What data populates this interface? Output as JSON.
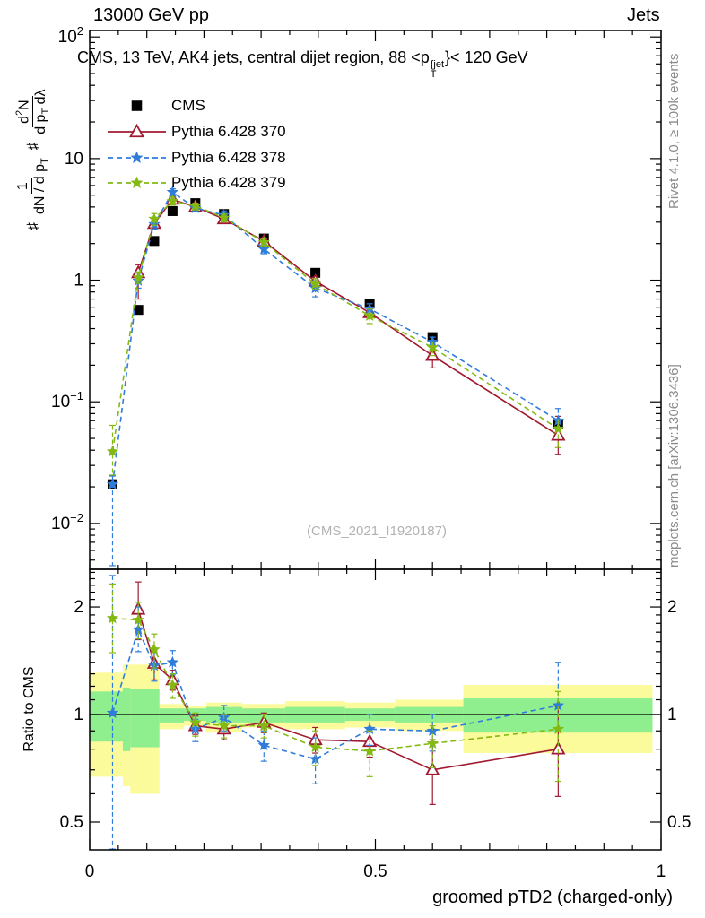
{
  "header": {
    "left": "13000 GeV pp",
    "right": "Jets"
  },
  "title": {
    "prefix": "CMS, 13 TeV, AK4 jets, central dijet region, 88 <p",
    "sup": "{jet",
    "sub": "T",
    "suffix": "}< 120 GeV"
  },
  "right_margin": {
    "top": "Rivet 4.1.0, ≥ 100k events",
    "bottom": "mcplots.cern.ch [arXiv:1306.3436]"
  },
  "watermark": "(CMS_2021_I1920187)",
  "ylabel": {
    "hash1": "♯",
    "frac1_num": "1",
    "frac1_den": "dN / d p",
    "frac1_den_sub": "T",
    "hash2": "♯",
    "frac2_num_a": "d",
    "frac2_num_sup": "2",
    "frac2_num_b": "N",
    "frac2_den_a": "d p",
    "frac2_den_sub": "T",
    "frac2_den_b": " dλ"
  },
  "ratio_label": "Ratio to CMS",
  "xlabel": "groomed pTD2 (charged-only)",
  "legend": [
    {
      "label": "CMS",
      "marker": "square",
      "color": "#000000",
      "line": "none"
    },
    {
      "label": "Pythia 6.428 370",
      "marker": "triangle",
      "color": "#a11931",
      "line": "solid"
    },
    {
      "label": "Pythia 6.428 378",
      "marker": "star",
      "color": "#2f7cdb",
      "line": "dash"
    },
    {
      "label": "Pythia 6.428 379",
      "marker": "star",
      "color": "#84b914",
      "line": "dash"
    }
  ],
  "colors": {
    "cms": "#000000",
    "pythia370": "#a11931",
    "pythia378": "#2f7cdb",
    "pythia379": "#84b914",
    "band_yellow": "#fbfb9b",
    "band_green": "#8fee8d",
    "frame": "#000000",
    "gray_text": "#8c8c8c",
    "watermark": "#b2b2b2"
  },
  "chart_data": {
    "type": "line",
    "title": "CMS, 13 TeV, AK4 jets, central dijet region, 88 < pT{jet} < 120 GeV",
    "xlabel": "groomed pTD2 (charged-only)",
    "ylabel": "# 1/(dN/dp_T) # d^2N/(dp_T dlambda)",
    "ratio_ylabel": "Ratio to CMS",
    "x_range": [
      0,
      1
    ],
    "main_y_range": [
      0.0042,
      113
    ],
    "main_y_scale": "log",
    "ratio_y_range": [
      0.418,
      2.55
    ],
    "ratio_y_scale": "log",
    "grid": false,
    "legend_position": "top-left",
    "x": [
      0.04,
      0.085,
      0.113,
      0.145,
      0.185,
      0.235,
      0.305,
      0.395,
      0.49,
      0.6,
      0.82
    ],
    "series": [
      {
        "name": "CMS",
        "marker": "square",
        "color": "#000000",
        "line": "none",
        "main": [
          0.021,
          0.57,
          2.1,
          3.7,
          4.3,
          3.5,
          2.2,
          1.15,
          0.64,
          0.34,
          0.066
        ],
        "main_err": null,
        "ratio": null,
        "ratio_err": null
      },
      {
        "name": "Pythia 6.428 370",
        "marker": "triangle",
        "color": "#a11931",
        "line": "solid",
        "main": [
          null,
          1.15,
          2.92,
          4.62,
          4.0,
          3.19,
          2.09,
          0.98,
          0.54,
          0.24,
          0.053
        ],
        "main_err": [
          null,
          [
            0.7,
            1.34
          ],
          [
            2.63,
            3.21
          ],
          [
            4.33,
            4.92
          ],
          [
            3.78,
            4.26
          ],
          [
            2.98,
            3.43
          ],
          [
            1.96,
            2.22
          ],
          [
            0.9,
            1.06
          ],
          [
            0.49,
            0.59
          ],
          [
            0.19,
            0.29
          ],
          [
            0.037,
            0.076
          ]
        ],
        "ratio": [
          null,
          1.97,
          1.39,
          1.25,
          0.93,
          0.91,
          0.95,
          0.85,
          0.84,
          0.7,
          0.8
        ],
        "ratio_err": [
          null,
          [
            1.62,
            2.35
          ],
          [
            1.25,
            1.53
          ],
          [
            1.17,
            1.33
          ],
          [
            0.88,
            0.99
          ],
          [
            0.85,
            0.98
          ],
          [
            0.89,
            1.01
          ],
          [
            0.78,
            0.92
          ],
          [
            0.76,
            0.92
          ],
          [
            0.56,
            0.85
          ],
          [
            0.59,
            1.05
          ]
        ]
      },
      {
        "name": "Pythia 6.428 378",
        "marker": "star",
        "color": "#2f7cdb",
        "line": "dash",
        "main": [
          0.021,
          0.99,
          2.88,
          5.3,
          3.91,
          3.43,
          1.8,
          0.86,
          0.58,
          0.31,
          0.07
        ],
        "main_err": [
          [
            0.0045,
            0.0245
          ],
          [
            0.86,
            1.14
          ],
          [
            2.63,
            3.15
          ],
          [
            4.95,
            5.65
          ],
          [
            3.66,
            4.17
          ],
          [
            3.15,
            3.71
          ],
          [
            1.65,
            1.98
          ],
          [
            0.73,
            0.99
          ],
          [
            0.53,
            0.64
          ],
          [
            0.27,
            0.34
          ],
          [
            0.059,
            0.088
          ]
        ],
        "ratio": [
          1.01,
          1.73,
          1.37,
          1.4,
          0.91,
          0.98,
          0.82,
          0.75,
          0.91,
          0.9,
          1.06
        ],
        "ratio_err": [
          [
            0.42,
            2.45
          ],
          [
            1.5,
            2.0
          ],
          [
            1.24,
            1.5
          ],
          [
            1.29,
            1.51
          ],
          [
            0.84,
            0.97
          ],
          [
            0.9,
            1.06
          ],
          [
            0.74,
            0.9
          ],
          [
            0.64,
            0.86
          ],
          [
            0.82,
            1.0
          ],
          [
            0.79,
            1.0
          ],
          [
            0.9,
            1.4
          ]
        ]
      },
      {
        "name": "Pythia 6.428 379",
        "marker": "star",
        "color": "#84b914",
        "line": "dash",
        "main": [
          0.039,
          1.05,
          3.19,
          4.48,
          4.09,
          3.26,
          2.05,
          0.93,
          0.51,
          0.28,
          0.06
        ],
        "main_err": [
          [
            0.025,
            0.064
          ],
          [
            0.94,
            1.17
          ],
          [
            2.83,
            3.53
          ],
          [
            4.14,
            4.81
          ],
          [
            3.78,
            4.3
          ],
          [
            3.01,
            3.5
          ],
          [
            1.89,
            2.2
          ],
          [
            0.84,
            1.03
          ],
          [
            0.44,
            0.58
          ],
          [
            0.24,
            0.31
          ],
          [
            0.042,
            0.071
          ]
        ],
        "ratio": [
          1.86,
          1.84,
          1.52,
          1.21,
          0.95,
          0.93,
          0.93,
          0.81,
          0.79,
          0.83,
          0.91
        ],
        "ratio_err": [
          [
            1.49,
            2.32
          ],
          [
            1.63,
            2.06
          ],
          [
            1.35,
            1.68
          ],
          [
            1.11,
            1.3
          ],
          [
            0.87,
            1.01
          ],
          [
            0.86,
            1.0
          ],
          [
            0.86,
            1.0
          ],
          [
            0.72,
            0.9
          ],
          [
            0.67,
            0.9
          ],
          [
            0.71,
            0.93
          ],
          [
            0.65,
            1.16
          ]
        ]
      }
    ],
    "ratio_reference_line": 1,
    "ratio_bands": [
      {
        "x0": 0.0,
        "x1": 0.058,
        "yellow": [
          0.67,
          1.31
        ],
        "green": [
          0.84,
          1.16
        ]
      },
      {
        "x0": 0.058,
        "x1": 0.071,
        "yellow": [
          0.63,
          1.38
        ],
        "green": [
          0.79,
          1.19
        ]
      },
      {
        "x0": 0.071,
        "x1": 0.122,
        "yellow": [
          0.6,
          1.38
        ],
        "green": [
          0.81,
          1.18
        ]
      },
      {
        "x0": 0.122,
        "x1": 0.165,
        "yellow": [
          0.91,
          1.07
        ],
        "green": [
          0.95,
          1.04
        ]
      },
      {
        "x0": 0.165,
        "x1": 0.204,
        "yellow": [
          0.93,
          1.06
        ],
        "green": [
          0.96,
          1.04
        ]
      },
      {
        "x0": 0.204,
        "x1": 0.267,
        "yellow": [
          0.89,
          1.08
        ],
        "green": [
          0.95,
          1.05
        ]
      },
      {
        "x0": 0.267,
        "x1": 0.342,
        "yellow": [
          0.92,
          1.07
        ],
        "green": [
          0.95,
          1.04
        ]
      },
      {
        "x0": 0.342,
        "x1": 0.447,
        "yellow": [
          0.91,
          1.09
        ],
        "green": [
          0.95,
          1.05
        ]
      },
      {
        "x0": 0.447,
        "x1": 0.534,
        "yellow": [
          0.92,
          1.08
        ],
        "green": [
          0.96,
          1.04
        ]
      },
      {
        "x0": 0.534,
        "x1": 0.654,
        "yellow": [
          0.9,
          1.1
        ],
        "green": [
          0.95,
          1.05
        ]
      },
      {
        "x0": 0.654,
        "x1": 0.985,
        "yellow": [
          0.78,
          1.21
        ],
        "green": [
          0.89,
          1.11
        ]
      }
    ],
    "axes": {
      "x_ticks": [
        {
          "v": 0,
          "label": "0"
        },
        {
          "v": 0.5,
          "label": "0.5"
        },
        {
          "v": 1,
          "label": "1"
        }
      ],
      "main_y_ticks": [
        {
          "v": 100,
          "label": "10^2"
        },
        {
          "v": 10,
          "label": "10"
        },
        {
          "v": 1,
          "label": "1"
        },
        {
          "v": 0.1,
          "label": "10^-1"
        },
        {
          "v": 0.01,
          "label": "10^-2"
        }
      ],
      "ratio_y_ticks": [
        {
          "v": 2,
          "label": "2"
        },
        {
          "v": 1,
          "label": "1"
        },
        {
          "v": 0.5,
          "label": "0.5"
        }
      ]
    }
  }
}
